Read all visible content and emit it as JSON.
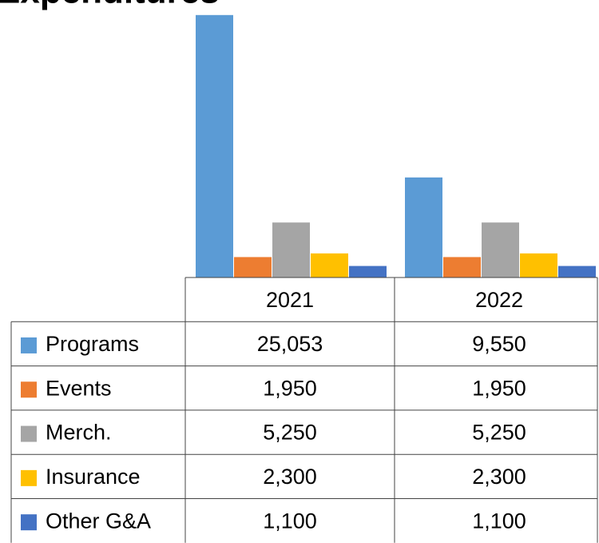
{
  "chart_data": {
    "type": "bar",
    "title": "Expenditures",
    "categories": [
      "2021",
      "2022"
    ],
    "ylim": [
      0,
      30000
    ],
    "series": [
      {
        "name": "Programs",
        "color": "#5b9bd5",
        "values": [
          25053,
          9550
        ],
        "value_labels": [
          "25,053",
          "9,550"
        ]
      },
      {
        "name": "Events",
        "color": "#ed7d31",
        "values": [
          1950,
          1950
        ],
        "value_labels": [
          "1,950",
          "1,950"
        ]
      },
      {
        "name": "Merch.",
        "color": "#a5a5a5",
        "values": [
          5250,
          5250
        ],
        "value_labels": [
          "5,250",
          "5,250"
        ]
      },
      {
        "name": "Insurance",
        "color": "#ffc000",
        "values": [
          2300,
          2300
        ],
        "value_labels": [
          "2,300",
          "2,300"
        ]
      },
      {
        "name": "Other G&A",
        "color": "#4472c4",
        "values": [
          1100,
          1100
        ],
        "value_labels": [
          "1,100",
          "1,100"
        ]
      }
    ]
  }
}
